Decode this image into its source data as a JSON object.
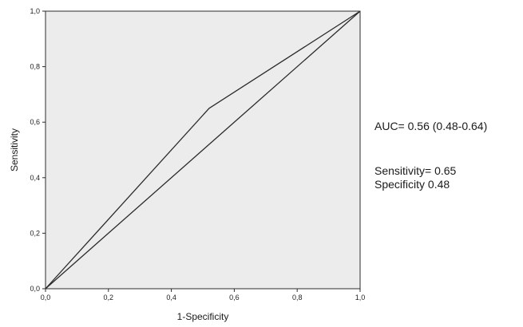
{
  "chart_data": {
    "type": "line",
    "title": "",
    "xlabel": "1-Specificity",
    "ylabel": "Sensitivity",
    "xlim": [
      0,
      1
    ],
    "ylim": [
      0,
      1
    ],
    "x_ticks": [
      "0,0",
      "0,2",
      "0,4",
      "0,6",
      "0,8",
      "1,0"
    ],
    "y_ticks": [
      "0,0",
      "0,2",
      "0,4",
      "0,6",
      "0,8",
      "1,0"
    ],
    "grid": false,
    "plot_background": "#ececec",
    "line_color": "#2b2b2b",
    "series": [
      {
        "x": [
          0.0,
          0.52,
          1.0
        ],
        "y": [
          0.0,
          0.65,
          1.0
        ]
      },
      {
        "x": [
          0.0,
          1.0
        ],
        "y": [
          0.0,
          1.0
        ]
      }
    ],
    "annotations": [
      "AUC= 0.56 (0.48-0.64)",
      "Sensitivity= 0.65",
      "Specificity 0.48"
    ]
  }
}
